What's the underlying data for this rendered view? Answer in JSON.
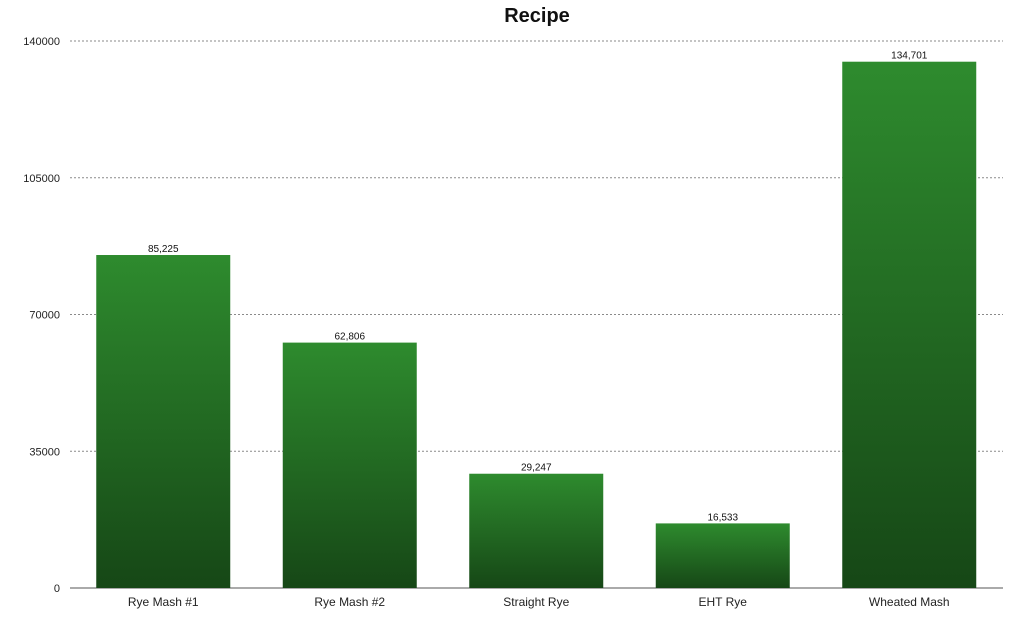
{
  "chart_data": {
    "type": "bar",
    "title": "Recipe",
    "categories": [
      "Rye Mash #1",
      "Rye Mash #2",
      "Straight Rye",
      "EHT Rye",
      "Wheated Mash"
    ],
    "values": [
      85225,
      62806,
      29247,
      16533,
      134701
    ],
    "value_labels": [
      "85,225",
      "62,806",
      "29,247",
      "16,533",
      "134,701"
    ],
    "ylim": [
      0,
      140000
    ],
    "y_ticks": [
      "0",
      "35000",
      "70000",
      "105000",
      "140000"
    ],
    "y_tick_values": [
      0,
      35000,
      70000,
      105000,
      140000
    ],
    "grid": true,
    "bar_color_top": "#2e8b2e",
    "bar_color_bottom": "#164716"
  }
}
